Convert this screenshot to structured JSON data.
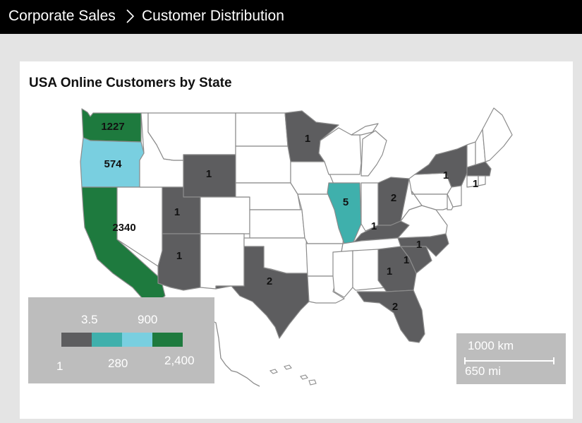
{
  "header": {
    "crumb_parent": "Corporate Sales",
    "crumb_current": "Customer Distribution"
  },
  "panel": {
    "title": "USA Online Customers by State"
  },
  "colors": {
    "band1": "#5d5d5f",
    "band2": "#3fb0ac",
    "band3": "#79cfe0",
    "band4": "#1e7a3e",
    "no_data": "#ffffff",
    "border": "#8c8c8c"
  },
  "states": [
    {
      "code": "WA",
      "value": "1227",
      "color_band": 4
    },
    {
      "code": "OR",
      "value": "574",
      "color_band": 3
    },
    {
      "code": "CA",
      "value": "2340",
      "color_band": 4
    },
    {
      "code": "WY",
      "value": "1",
      "color_band": 1
    },
    {
      "code": "UT",
      "value": "1",
      "color_band": 1
    },
    {
      "code": "AZ",
      "value": "1",
      "color_band": 1
    },
    {
      "code": "MN",
      "value": "1",
      "color_band": 1
    },
    {
      "code": "TX",
      "value": "2",
      "color_band": 1
    },
    {
      "code": "IL",
      "value": "5",
      "color_band": 2
    },
    {
      "code": "OH",
      "value": "2",
      "color_band": 1
    },
    {
      "code": "KY",
      "value": "1",
      "color_band": 1
    },
    {
      "code": "NY",
      "value": "1",
      "color_band": 1
    },
    {
      "code": "MA",
      "value": "1",
      "color_band": 1
    },
    {
      "code": "NC",
      "value": "1",
      "color_band": 1
    },
    {
      "code": "SC",
      "value": "1",
      "color_band": 1
    },
    {
      "code": "GA",
      "value": "1",
      "color_band": 1
    },
    {
      "code": "FL",
      "value": "2",
      "color_band": 1
    }
  ],
  "legend": {
    "top_labels": [
      "3.5",
      "900"
    ],
    "bottom_labels": [
      "1",
      "280",
      "2,400"
    ]
  },
  "scale_bar": {
    "km_label": "1000 km",
    "mi_label": "650 mi"
  }
}
